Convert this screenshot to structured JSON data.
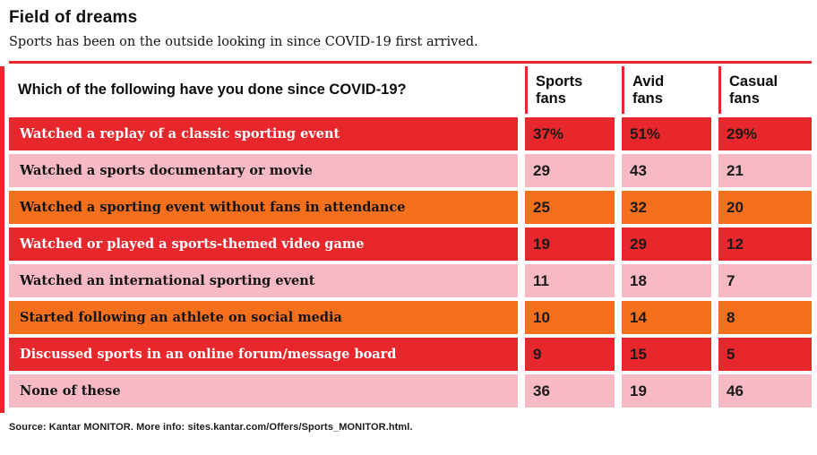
{
  "header": {
    "title": "Field of dreams",
    "subtitle": "Sports has been on the outside looking in since COVID-19 first arrived."
  },
  "table": {
    "question_header": "Which of the following have you done since COVID-19?",
    "columns": [
      "Sports fans",
      "Avid fans",
      "Casual fans"
    ],
    "rows": [
      {
        "label": "Watched a replay of a classic sporting event",
        "values": [
          "37%",
          "51%",
          "29%"
        ],
        "color": "red"
      },
      {
        "label": "Watched a sports documentary or movie",
        "values": [
          "29",
          "43",
          "21"
        ],
        "color": "pink"
      },
      {
        "label": "Watched a sporting event without fans in attendance",
        "values": [
          "25",
          "32",
          "20"
        ],
        "color": "orange"
      },
      {
        "label": "Watched or played a sports-themed video game",
        "values": [
          "19",
          "29",
          "12"
        ],
        "color": "red"
      },
      {
        "label": "Watched an international sporting event",
        "values": [
          "11",
          "18",
          "7"
        ],
        "color": "pink"
      },
      {
        "label": "Started following an athlete on social media",
        "values": [
          "10",
          "14",
          "8"
        ],
        "color": "orange"
      },
      {
        "label": "Discussed sports in an online forum/message board",
        "values": [
          "9",
          "15",
          "5"
        ],
        "color": "red"
      },
      {
        "label": "None of these",
        "values": [
          "36",
          "19",
          "46"
        ],
        "color": "pink"
      }
    ]
  },
  "footer": {
    "source": "Source: Kantar MONITOR. More info: sites.kantar.com/Offers/Sports_MONITOR.html."
  },
  "colors": {
    "red": "#e8272d",
    "pink": "#f7b9c3",
    "orange": "#f4701d"
  },
  "chart_data": {
    "type": "table",
    "title": "Field of dreams",
    "subtitle": "Sports has been on the outside looking in since COVID-19 first arrived.",
    "question": "Which of the following have you done since COVID-19?",
    "categories": [
      "Watched a replay of a classic sporting event",
      "Watched a sports documentary or movie",
      "Watched a sporting event without fans in attendance",
      "Watched or played a sports-themed video game",
      "Watched an international sporting event",
      "Started following an athlete on social media",
      "Discussed sports in an online forum/message board",
      "None of these"
    ],
    "series": [
      {
        "name": "Sports fans",
        "values": [
          37,
          29,
          25,
          19,
          11,
          10,
          9,
          36
        ]
      },
      {
        "name": "Avid fans",
        "values": [
          51,
          43,
          32,
          29,
          18,
          14,
          15,
          19
        ]
      },
      {
        "name": "Casual fans",
        "values": [
          29,
          21,
          20,
          12,
          7,
          8,
          5,
          46
        ]
      }
    ],
    "value_unit": "%",
    "row_colors": [
      "red",
      "pink",
      "orange",
      "red",
      "pink",
      "orange",
      "red",
      "pink"
    ],
    "source": "Source: Kantar MONITOR. More info: sites.kantar.com/Offers/Sports_MONITOR.html."
  }
}
